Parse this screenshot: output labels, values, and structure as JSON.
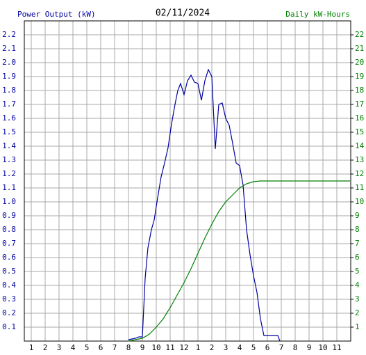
{
  "chart_data": {
    "type": "line",
    "title": "02/11/2024",
    "y_label": "Power Output (kW)",
    "y2_label": "Daily kW-Hours",
    "xlim": [
      0.5,
      24
    ],
    "xticks": [
      1,
      2,
      3,
      4,
      5,
      6,
      7,
      8,
      9,
      10,
      11,
      12,
      {
        "value": 13,
        "label": "1"
      },
      {
        "value": 14,
        "label": "2"
      },
      {
        "value": 15,
        "label": "3"
      },
      {
        "value": 16,
        "label": "4"
      },
      {
        "value": 17,
        "label": "5"
      },
      {
        "value": 18,
        "label": "6"
      },
      {
        "value": 19,
        "label": "7"
      },
      {
        "value": 20,
        "label": "8"
      },
      {
        "value": 21,
        "label": "9"
      },
      {
        "value": 22,
        "label": "10"
      },
      {
        "value": 23,
        "label": "11"
      }
    ],
    "ylim": [
      0,
      2.3
    ],
    "yticks": [
      0.1,
      0.2,
      0.3,
      0.4,
      0.5,
      0.6,
      0.7,
      0.8,
      0.9,
      {
        "value": 1.0,
        "label": "1.0"
      },
      1.1,
      1.2,
      1.3,
      1.4,
      1.5,
      1.6,
      1.7,
      1.8,
      1.9,
      {
        "value": 2.0,
        "label": "2.0"
      },
      2.1,
      2.2
    ],
    "y2lim": [
      0,
      23
    ],
    "y2ticks": [
      1,
      2,
      3,
      4,
      5,
      6,
      7,
      8,
      9,
      10,
      11,
      12,
      13,
      14,
      15,
      16,
      17,
      18,
      19,
      20,
      21,
      22
    ],
    "grid": true,
    "series": [
      {
        "name": "Power Output (kW)",
        "color": "#0000a0",
        "axis": "y",
        "x": [
          8.0,
          8.5,
          8.75,
          9.0,
          9.2,
          9.4,
          9.65,
          9.85,
          10.1,
          10.35,
          10.6,
          10.85,
          11.1,
          11.35,
          11.55,
          11.75,
          12.0,
          12.25,
          12.5,
          12.75,
          13.0,
          13.25,
          13.5,
          13.75,
          14.0,
          14.25,
          14.5,
          14.75,
          15.0,
          15.25,
          15.5,
          15.75,
          16.0,
          16.25,
          16.5,
          16.75,
          17.0,
          17.25,
          17.5,
          17.75,
          18.0,
          18.25,
          18.5,
          18.75,
          18.9
        ],
        "values": [
          0.01,
          0.02,
          0.03,
          0.03,
          0.45,
          0.67,
          0.8,
          0.87,
          1.03,
          1.18,
          1.28,
          1.39,
          1.56,
          1.7,
          1.8,
          1.85,
          1.77,
          1.87,
          1.91,
          1.86,
          1.85,
          1.73,
          1.87,
          1.95,
          1.9,
          1.38,
          1.7,
          1.71,
          1.6,
          1.55,
          1.42,
          1.28,
          1.26,
          1.12,
          0.8,
          0.62,
          0.47,
          0.35,
          0.16,
          0.04,
          0.04,
          0.04,
          0.04,
          0.04,
          0.0
        ]
      },
      {
        "name": "Daily kW-Hours",
        "color": "#008000",
        "axis": "y2",
        "x": [
          8.0,
          9.0,
          9.5,
          10.0,
          10.5,
          11.0,
          11.5,
          12.0,
          12.5,
          13.0,
          13.5,
          14.0,
          14.5,
          15.0,
          15.5,
          16.0,
          16.5,
          17.0,
          17.5,
          23.95
        ],
        "values": [
          0,
          0.2,
          0.5,
          1.0,
          1.6,
          2.4,
          3.3,
          4.2,
          5.2,
          6.3,
          7.4,
          8.4,
          9.3,
          10.0,
          10.5,
          11.0,
          11.3,
          11.45,
          11.5,
          11.5
        ]
      }
    ]
  }
}
